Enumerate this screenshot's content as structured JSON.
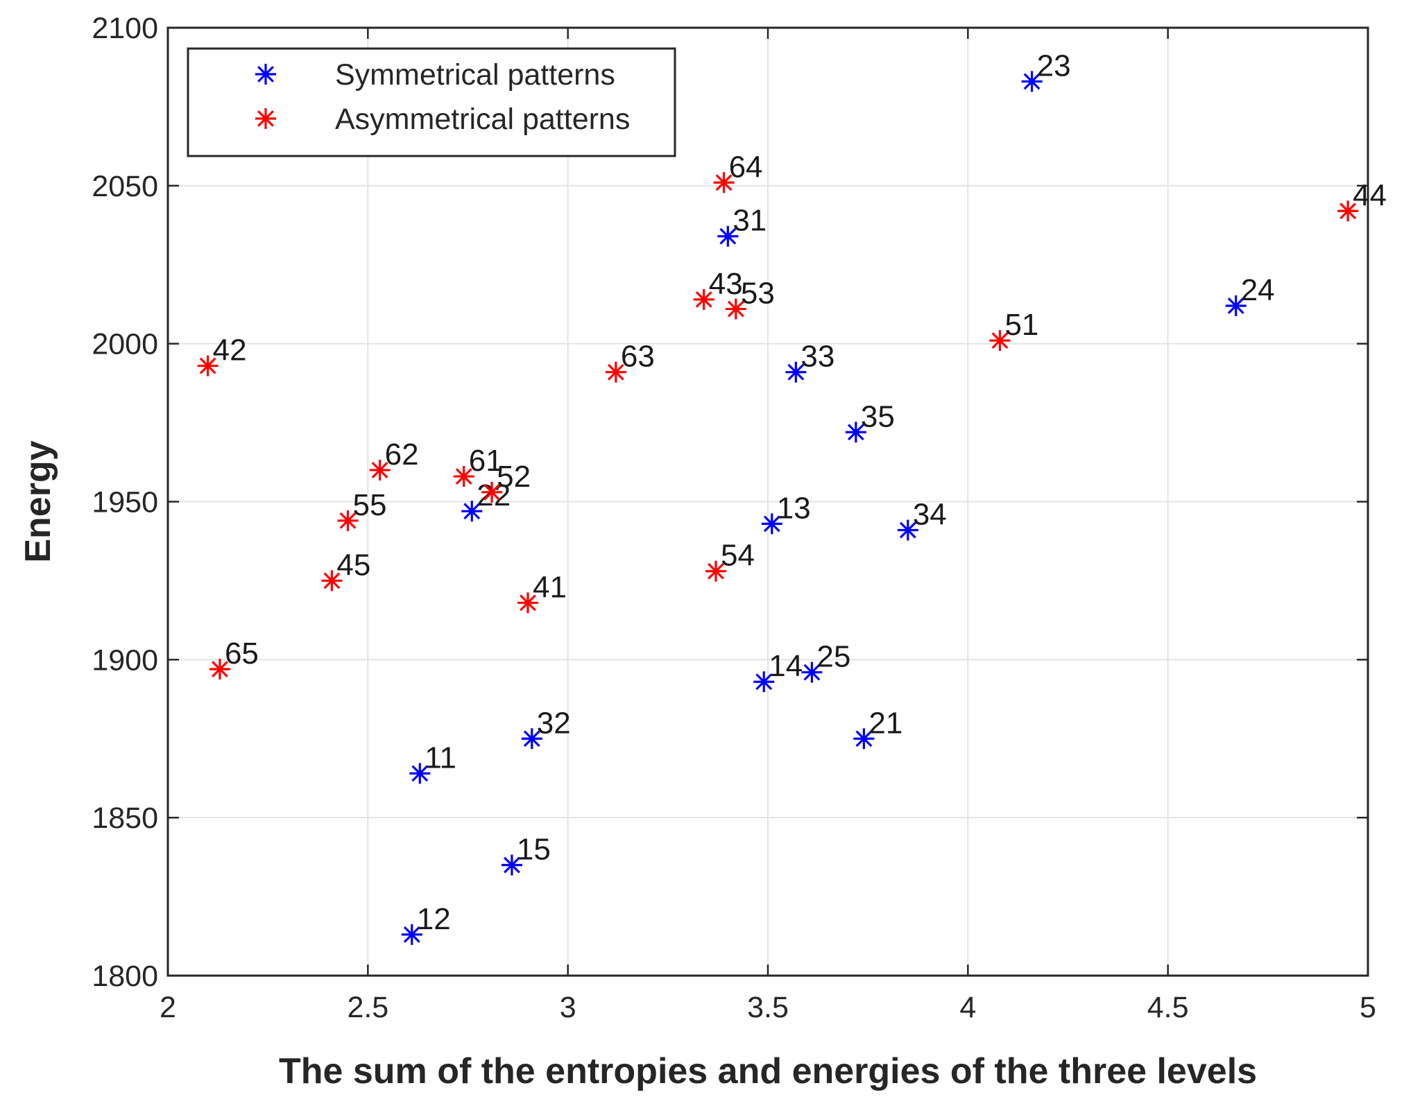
{
  "chart_data": {
    "type": "scatter",
    "title": "",
    "xlabel": "The sum of the entropies and energies of the three levels",
    "ylabel": "Energy",
    "xlim": [
      2,
      5
    ],
    "ylim": [
      1800,
      2100
    ],
    "xticks": [
      "2",
      "2.5",
      "3",
      "3.5",
      "4",
      "4.5",
      "5"
    ],
    "yticks": [
      "1800",
      "1850",
      "1900",
      "1950",
      "2000",
      "2050",
      "2100"
    ],
    "grid": true,
    "legend_position": "top-left",
    "marker": "asterisk",
    "series": [
      {
        "name": "Symmetrical patterns",
        "color": "#0000ff",
        "points": [
          {
            "x": 2.63,
            "y": 1864,
            "label": "11"
          },
          {
            "x": 2.61,
            "y": 1813,
            "label": "12"
          },
          {
            "x": 3.51,
            "y": 1943,
            "label": "13"
          },
          {
            "x": 3.49,
            "y": 1893,
            "label": "14"
          },
          {
            "x": 2.86,
            "y": 1835,
            "label": "15"
          },
          {
            "x": 3.74,
            "y": 1875,
            "label": "21"
          },
          {
            "x": 2.76,
            "y": 1947,
            "label": "22"
          },
          {
            "x": 4.16,
            "y": 2083,
            "label": "23"
          },
          {
            "x": 4.67,
            "y": 2012,
            "label": "24"
          },
          {
            "x": 3.61,
            "y": 1896,
            "label": "25"
          },
          {
            "x": 3.4,
            "y": 2034,
            "label": "31"
          },
          {
            "x": 2.91,
            "y": 1875,
            "label": "32"
          },
          {
            "x": 3.57,
            "y": 1991,
            "label": "33"
          },
          {
            "x": 3.85,
            "y": 1941,
            "label": "34"
          },
          {
            "x": 3.72,
            "y": 1972,
            "label": "35"
          }
        ]
      },
      {
        "name": "Asymmetrical patterns",
        "color": "#ff0000",
        "points": [
          {
            "x": 2.9,
            "y": 1918,
            "label": "41"
          },
          {
            "x": 2.1,
            "y": 1993,
            "label": "42"
          },
          {
            "x": 3.34,
            "y": 2014,
            "label": "43"
          },
          {
            "x": 4.95,
            "y": 2042,
            "label": "44"
          },
          {
            "x": 2.41,
            "y": 1925,
            "label": "45"
          },
          {
            "x": 4.08,
            "y": 2001,
            "label": "51"
          },
          {
            "x": 2.81,
            "y": 1953,
            "label": "52"
          },
          {
            "x": 3.42,
            "y": 2011,
            "label": "53"
          },
          {
            "x": 3.37,
            "y": 1928,
            "label": "54"
          },
          {
            "x": 2.45,
            "y": 1944,
            "label": "55"
          },
          {
            "x": 2.74,
            "y": 1958,
            "label": "61"
          },
          {
            "x": 2.53,
            "y": 1960,
            "label": "62"
          },
          {
            "x": 3.12,
            "y": 1991,
            "label": "63"
          },
          {
            "x": 3.39,
            "y": 2051,
            "label": "64"
          },
          {
            "x": 2.13,
            "y": 1897,
            "label": "65"
          }
        ]
      }
    ]
  }
}
